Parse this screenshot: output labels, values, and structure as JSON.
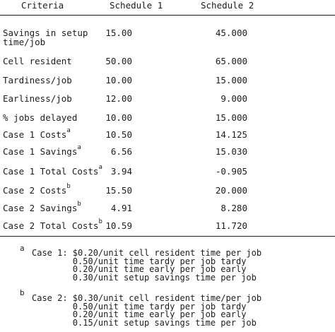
{
  "table": {
    "headers": {
      "criteria": "Criteria",
      "schedule1": "Schedule 1",
      "schedule2": "Schedule 2"
    },
    "rows": [
      {
        "label_line1": "Savings in setup",
        "label_line2": "time/job",
        "s1": "15.00",
        "s2": "45.000"
      },
      {
        "label": "Cell resident",
        "s1": "50.00",
        "s2": "65.000"
      },
      {
        "label": "Tardiness/job",
        "s1": "10.00",
        "s2": "15.000"
      },
      {
        "label": "Earliness/job",
        "s1": "12.00",
        "s2": "9.000"
      },
      {
        "label": "% jobs delayed",
        "s1": "10.00",
        "s2": "15.000"
      },
      {
        "label": "Case 1 Costs",
        "sup": "a",
        "s1": "10.50",
        "s2": "14.125"
      },
      {
        "label": "Case 1 Savings",
        "sup": "a",
        "s1": "6.56",
        "s2": "15.030"
      },
      {
        "label": "Case 1 Total Costs",
        "sup": "a",
        "s1": "3.94",
        "s2": "-0.905"
      },
      {
        "label": "Case 2 Costs",
        "sup": "b",
        "s1": "15.50",
        "s2": "20.000"
      },
      {
        "label": "Case 2 Savings",
        "sup": "b",
        "s1": "4.91",
        "s2": "8.280"
      },
      {
        "label": "Case 2 Total Costs",
        "sup": "b",
        "s1": "10.59",
        "s2": "11.720"
      }
    ]
  },
  "footnotes": {
    "a": {
      "mark": "a",
      "lines": [
        "Case 1: $0.20/unit cell resident time per job",
        "        0.50/unit time tardy per job tardy",
        "        0.20/unit time early per job early",
        "        0.30/unit setup savings time per job"
      ]
    },
    "b": {
      "mark": "b",
      "lines": [
        "Case 2: $0.30/unit cell resident time/per job",
        "        0.50/unit time tardy per job tardy",
        "        0.20/unit time early per job early",
        "        0.15/unit setup savings time per job"
      ]
    }
  }
}
